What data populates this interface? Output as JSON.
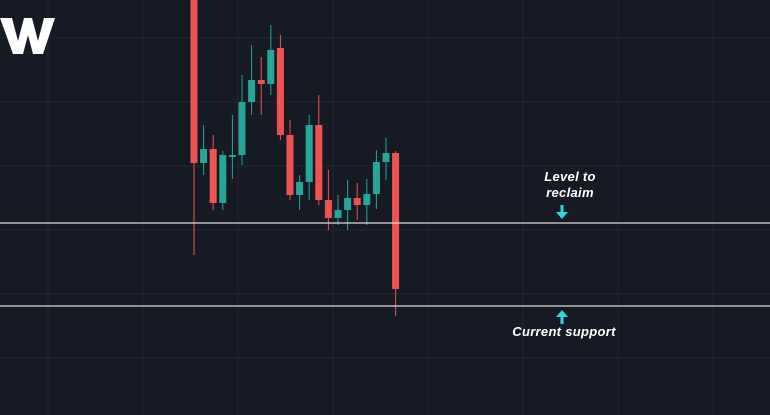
{
  "colors": {
    "background": "#161a25",
    "grid": "#222634",
    "bull": "#26a69a",
    "bear": "#ef5350",
    "level_line": "#d9d9d9",
    "arrow": "#2fd8de",
    "logo": "#ffffff"
  },
  "logo": {
    "icon": "tradingview-logo-icon"
  },
  "chart_data": {
    "type": "candlestick",
    "ylim": [
      0,
      415
    ],
    "grid": true,
    "candles": [
      {
        "o": 420,
        "h": 430,
        "l": 160,
        "c": 252
      },
      {
        "o": 252,
        "h": 290,
        "l": 240,
        "c": 266
      },
      {
        "o": 266,
        "h": 280,
        "l": 205,
        "c": 212
      },
      {
        "o": 212,
        "h": 264,
        "l": 205,
        "c": 260
      },
      {
        "o": 258,
        "h": 300,
        "l": 236,
        "c": 260
      },
      {
        "o": 260,
        "h": 340,
        "l": 250,
        "c": 313
      },
      {
        "o": 313,
        "h": 370,
        "l": 300,
        "c": 335
      },
      {
        "o": 335,
        "h": 358,
        "l": 300,
        "c": 331
      },
      {
        "o": 331,
        "h": 390,
        "l": 320,
        "c": 365
      },
      {
        "o": 367,
        "h": 380,
        "l": 275,
        "c": 280
      },
      {
        "o": 280,
        "h": 295,
        "l": 215,
        "c": 220
      },
      {
        "o": 220,
        "h": 240,
        "l": 205,
        "c": 233
      },
      {
        "o": 233,
        "h": 300,
        "l": 215,
        "c": 290
      },
      {
        "o": 290,
        "h": 320,
        "l": 210,
        "c": 215
      },
      {
        "o": 215,
        "h": 245,
        "l": 185,
        "c": 197
      },
      {
        "o": 197,
        "h": 220,
        "l": 190,
        "c": 205
      },
      {
        "o": 205,
        "h": 235,
        "l": 185,
        "c": 217
      },
      {
        "o": 217,
        "h": 232,
        "l": 195,
        "c": 210
      },
      {
        "o": 210,
        "h": 236,
        "l": 190,
        "c": 221
      },
      {
        "o": 221,
        "h": 265,
        "l": 206,
        "c": 253
      },
      {
        "o": 253,
        "h": 277,
        "l": 235,
        "c": 262
      },
      {
        "o": 262,
        "h": 264,
        "l": 99,
        "c": 126
      }
    ],
    "levels": [
      {
        "value": 192,
        "label": "Level to\nreclaim",
        "arrow": "down"
      },
      {
        "value": 109,
        "label": "Current support",
        "arrow": "up"
      }
    ]
  }
}
